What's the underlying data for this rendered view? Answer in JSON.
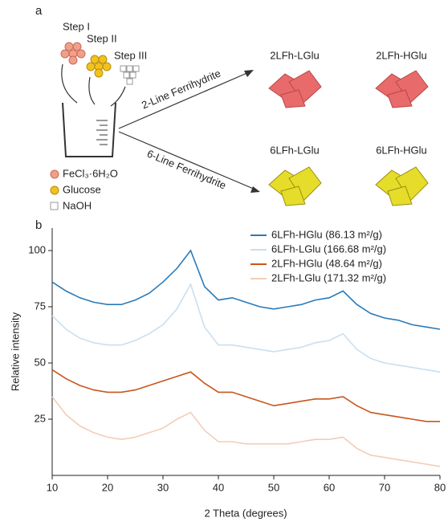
{
  "panel_a": {
    "label": "a",
    "steps": [
      "Step I",
      "Step II",
      "Step III"
    ],
    "routes": [
      "2-Line Ferrihydrite",
      "6-Line Ferrihydrite"
    ],
    "products": [
      "2LFh-LGlu",
      "2LFh-HGlu",
      "6LFh-LGlu",
      "6LFh-HGlu"
    ],
    "reagents": [
      "FeCl₃·6H₂O",
      "Glucose",
      "NaOH"
    ]
  },
  "panel_b": {
    "label": "b"
  },
  "chart_data": {
    "type": "line",
    "x_label": "2 Theta (degrees)",
    "y_label": "Relative intensity",
    "x": [
      10,
      12.5,
      15,
      17.5,
      20,
      22.5,
      25,
      27.5,
      30,
      32.5,
      35,
      37.5,
      40,
      42.5,
      45,
      47.5,
      50,
      52.5,
      55,
      57.5,
      60,
      62.5,
      65,
      67.5,
      70,
      72.5,
      75,
      77.5,
      80
    ],
    "series": [
      {
        "name": "6LFh-HGlu (86.13 m²/g)",
        "color": "#2a7ab8",
        "values": [
          86,
          82,
          79,
          77,
          76,
          76,
          78,
          81,
          86,
          92,
          100,
          84,
          78,
          79,
          77,
          75,
          74,
          75,
          76,
          78,
          79,
          82,
          76,
          72,
          70,
          69,
          67,
          66,
          65
        ]
      },
      {
        "name": "6LFh-LGlu (166.68 m²/g)",
        "color": "#c9dff0",
        "values": [
          71,
          65,
          61,
          59,
          58,
          58,
          60,
          63,
          67,
          74,
          85,
          66,
          58,
          58,
          57,
          56,
          55,
          56,
          57,
          59,
          60,
          63,
          56,
          52,
          50,
          49,
          48,
          47,
          46
        ]
      },
      {
        "name": "2LFh-HGlu (48.64 m²/g)",
        "color": "#c8561c",
        "values": [
          47,
          43,
          40,
          38,
          37,
          37,
          38,
          40,
          42,
          44,
          46,
          41,
          37,
          37,
          35,
          33,
          31,
          32,
          33,
          34,
          34,
          35,
          31,
          28,
          27,
          26,
          25,
          24,
          24
        ]
      },
      {
        "name": "2LFh-LGlu (171.32 m²/g)",
        "color": "#f3cdb8",
        "values": [
          35,
          27,
          22,
          19,
          17,
          16,
          17,
          19,
          21,
          25,
          28,
          20,
          15,
          15,
          14,
          14,
          14,
          14,
          15,
          16,
          16,
          17,
          12,
          9,
          8,
          7,
          6,
          5,
          4
        ]
      }
    ],
    "xlim": [
      10,
      80
    ],
    "xticks": [
      10,
      20,
      30,
      40,
      50,
      60,
      70,
      80
    ],
    "ylim": [
      0,
      110
    ],
    "yticks": [
      25,
      50,
      75,
      100
    ],
    "legend": "top-right"
  }
}
